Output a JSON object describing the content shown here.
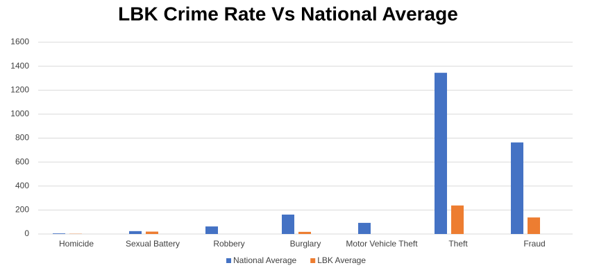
{
  "chart_data": {
    "type": "bar",
    "title": "LBK Crime Rate Vs National Average",
    "categories": [
      "Homicide",
      "Sexual Battery",
      "Robbery",
      "Burglary",
      "Motor Vehicle Theft",
      "Theft",
      "Fraud"
    ],
    "series": [
      {
        "name": "National Average",
        "color": "#4472c4",
        "values": [
          5,
          24,
          63,
          162,
          93,
          1345,
          764
        ]
      },
      {
        "name": "LBK Average",
        "color": "#ed7d31",
        "values": [
          2,
          20,
          0,
          18,
          0,
          238,
          138
        ]
      }
    ],
    "ylim": [
      0,
      1600
    ],
    "yticks": [
      0,
      200,
      400,
      600,
      800,
      1000,
      1200,
      1400,
      1600
    ],
    "grid": true,
    "legend": "bottom"
  }
}
